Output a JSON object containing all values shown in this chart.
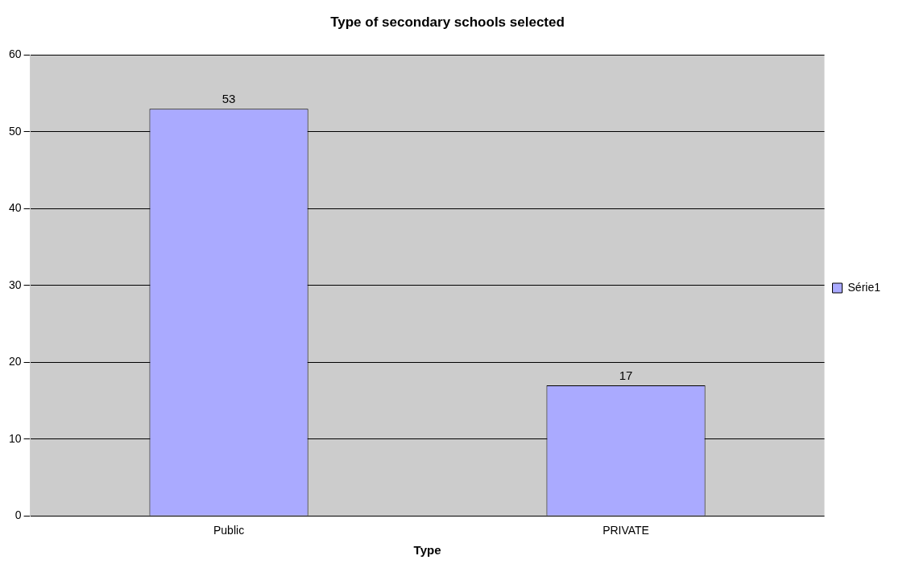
{
  "chart_data": {
    "type": "bar",
    "title": "Type of secondary schools selected",
    "xlabel": "Type",
    "categories": [
      "Public",
      "PRIVATE"
    ],
    "series": [
      {
        "name": "Série1",
        "color": "#aaaaff",
        "values": [
          53,
          17
        ]
      }
    ],
    "ylim": [
      0,
      60
    ],
    "yticks": [
      0,
      10,
      20,
      30,
      40,
      50,
      60
    ],
    "grid": "y",
    "legend": "right",
    "data_labels": true
  }
}
